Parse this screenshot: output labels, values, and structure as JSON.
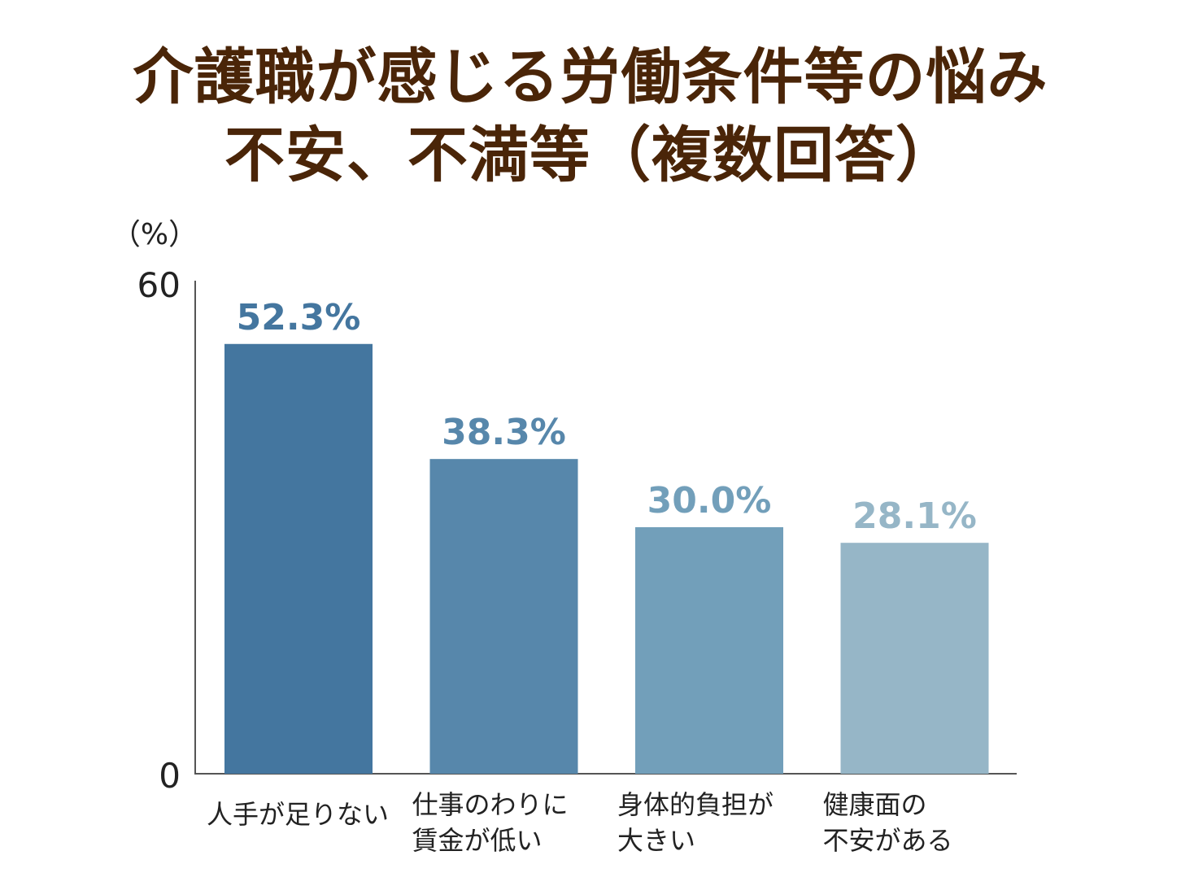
{
  "chart_data": {
    "type": "bar",
    "title": [
      "介護職が感じる労働条件等の悩み",
      "不安、不満等（複数回答）"
    ],
    "ylabel": "（%）",
    "ylim": [
      0,
      60
    ],
    "yticks": [
      "0",
      "60"
    ],
    "categories": [
      [
        "人手が足りない"
      ],
      [
        "仕事のわりに",
        "賃金が低い"
      ],
      [
        "身体的負担が",
        "大きい"
      ],
      [
        "健康面の",
        "不安がある"
      ]
    ],
    "values": [
      52.3,
      38.3,
      30.0,
      28.1
    ],
    "value_labels": [
      "52.3%",
      "38.3%",
      "30.0%",
      "28.1%"
    ],
    "bar_colors": [
      "#44769f",
      "#5787ab",
      "#729fba",
      "#96b6c7"
    ],
    "label_colors": [
      "#44769f",
      "#5787ab",
      "#729fba",
      "#96b6c7"
    ],
    "grid": false,
    "legend": "none"
  }
}
